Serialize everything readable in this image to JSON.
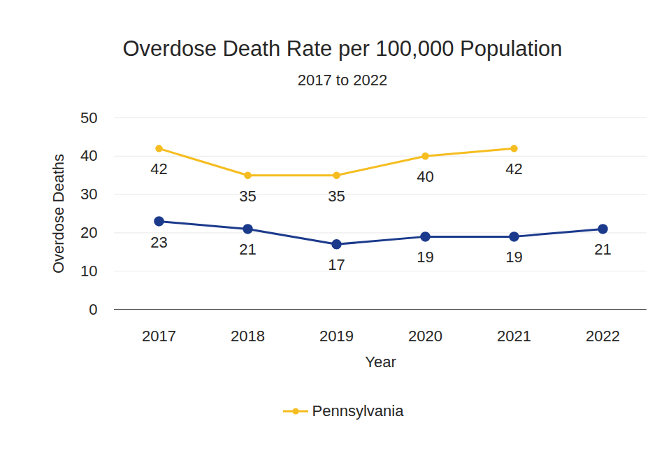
{
  "chart_data": {
    "type": "line",
    "title": "Overdose Death Rate per 100,000 Population",
    "subtitle": "2017 to 2022",
    "x_label": "Year",
    "y_label": "Overdose Deaths",
    "categories": [
      "2017",
      "2018",
      "2019",
      "2020",
      "2021",
      "2022"
    ],
    "series": [
      {
        "name": "Pennsylvania",
        "color": "#f5bd1f",
        "values": [
          42,
          35,
          35,
          40,
          42,
          null
        ]
      },
      {
        "color": "#1b3a8c",
        "values": [
          23,
          21,
          17,
          19,
          19,
          21
        ]
      }
    ],
    "ylim": [
      0,
      50
    ],
    "yticks": [
      0,
      10,
      20,
      30,
      40,
      50
    ],
    "grid": true,
    "data_labels": true,
    "legend": "bottom",
    "marker": "circle"
  }
}
